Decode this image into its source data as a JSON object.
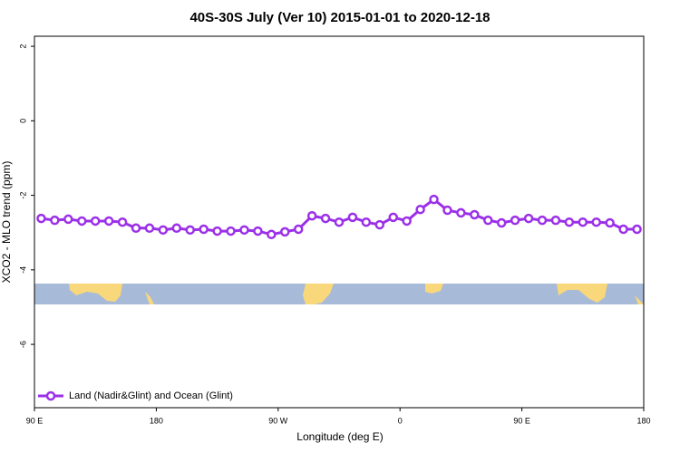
{
  "chart_data": {
    "type": "line",
    "title": "40S-30S July (Ver 10)   2015-01-01 to 2020-12-18",
    "x_label": "Longitude (deg E)",
    "y_label": "XCO2 - MLO trend (ppm)",
    "xlim": [
      90,
      540
    ],
    "ylim": [
      -7.7,
      2.27
    ],
    "xticks": [
      {
        "value": 90,
        "label": "90 E"
      },
      180,
      {
        "value": 270,
        "label": "90 W"
      },
      {
        "value": 360,
        "label": "0"
      },
      {
        "value": 450,
        "label": "90 E"
      },
      {
        "value": 540,
        "label": "180"
      }
    ],
    "yticks": [
      2,
      0,
      -2,
      -4,
      -6
    ],
    "legend_position": "bottom-left",
    "x": [
      95,
      105,
      115,
      125,
      135,
      145,
      155,
      165,
      175,
      185,
      195,
      205,
      215,
      225,
      235,
      245,
      255,
      265,
      275,
      285,
      295,
      305,
      315,
      325,
      335,
      345,
      355,
      365,
      375,
      385,
      395,
      405,
      415,
      425,
      435,
      445,
      455,
      465,
      475,
      485,
      495,
      505,
      515,
      525,
      535
    ],
    "series": [
      {
        "name": "Land (Nadir&Glint) and Ocean (Glint)",
        "color": "#9b30e8",
        "values": [
          -2.62,
          -2.67,
          -2.64,
          -2.69,
          -2.69,
          -2.69,
          -2.72,
          -2.88,
          -2.88,
          -2.93,
          -2.88,
          -2.93,
          -2.91,
          -2.96,
          -2.96,
          -2.93,
          -2.96,
          -3.05,
          -2.98,
          -2.91,
          -2.55,
          -2.62,
          -2.72,
          -2.59,
          -2.72,
          -2.79,
          -2.59,
          -2.69,
          -2.38,
          -2.11,
          -2.4,
          -2.47,
          -2.52,
          -2.67,
          -2.74,
          -2.67,
          -2.62,
          -2.67,
          -2.67,
          -2.72,
          -2.72,
          -2.72,
          -2.74,
          -2.91,
          -2.91
        ]
      }
    ]
  }
}
